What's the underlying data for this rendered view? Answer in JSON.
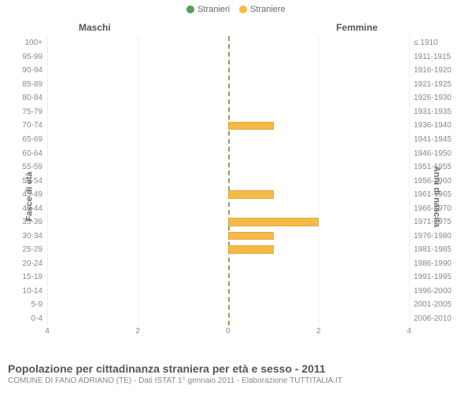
{
  "legend": {
    "male": {
      "label": "Stranieri",
      "color": "#5b9b5b"
    },
    "female": {
      "label": "Straniere",
      "color": "#f5b947"
    }
  },
  "headers": {
    "male": "Maschi",
    "female": "Femmine"
  },
  "y_titles": {
    "left": "Fasce di età",
    "right": "Anni di nascita"
  },
  "footer": {
    "title": "Popolazione per cittadinanza straniera per età e sesso - 2011",
    "subtitle": "COMUNE DI FANO ADRIANO (TE) - Dati ISTAT 1° gennaio 2011 - Elaborazione TUTTITALIA.IT"
  },
  "chart": {
    "type": "population-pyramid",
    "x_max": 4,
    "x_ticks": [
      4,
      2,
      0,
      2,
      4
    ],
    "center_line_color": "#999966",
    "grid_color": "#f0f0f0",
    "background_color": "#ffffff",
    "bar_colors": {
      "male": "#5b9b5b",
      "female": "#f5b947"
    },
    "label_fontsize": 10,
    "rows": [
      {
        "age": "100+",
        "birth": "≤ 1910",
        "male": 0,
        "female": 0
      },
      {
        "age": "95-99",
        "birth": "1911-1915",
        "male": 0,
        "female": 0
      },
      {
        "age": "90-94",
        "birth": "1916-1920",
        "male": 0,
        "female": 0
      },
      {
        "age": "85-89",
        "birth": "1921-1925",
        "male": 0,
        "female": 0
      },
      {
        "age": "80-84",
        "birth": "1926-1930",
        "male": 0,
        "female": 0
      },
      {
        "age": "75-79",
        "birth": "1931-1935",
        "male": 0,
        "female": 0
      },
      {
        "age": "70-74",
        "birth": "1936-1940",
        "male": 0,
        "female": 1
      },
      {
        "age": "65-69",
        "birth": "1941-1945",
        "male": 0,
        "female": 0
      },
      {
        "age": "60-64",
        "birth": "1946-1950",
        "male": 0,
        "female": 0
      },
      {
        "age": "55-59",
        "birth": "1951-1955",
        "male": 0,
        "female": 0
      },
      {
        "age": "50-54",
        "birth": "1956-1960",
        "male": 0,
        "female": 0
      },
      {
        "age": "45-49",
        "birth": "1961-1965",
        "male": 0,
        "female": 1
      },
      {
        "age": "40-44",
        "birth": "1966-1970",
        "male": 0,
        "female": 0
      },
      {
        "age": "35-39",
        "birth": "1971-1975",
        "male": 0,
        "female": 2
      },
      {
        "age": "30-34",
        "birth": "1976-1980",
        "male": 0,
        "female": 1
      },
      {
        "age": "25-29",
        "birth": "1981-1985",
        "male": 0,
        "female": 1
      },
      {
        "age": "20-24",
        "birth": "1986-1990",
        "male": 0,
        "female": 0
      },
      {
        "age": "15-19",
        "birth": "1991-1995",
        "male": 0,
        "female": 0
      },
      {
        "age": "10-14",
        "birth": "1996-2000",
        "male": 0,
        "female": 0
      },
      {
        "age": "5-9",
        "birth": "2001-2005",
        "male": 0,
        "female": 0
      },
      {
        "age": "0-4",
        "birth": "2006-2010",
        "male": 0,
        "female": 0
      }
    ]
  }
}
